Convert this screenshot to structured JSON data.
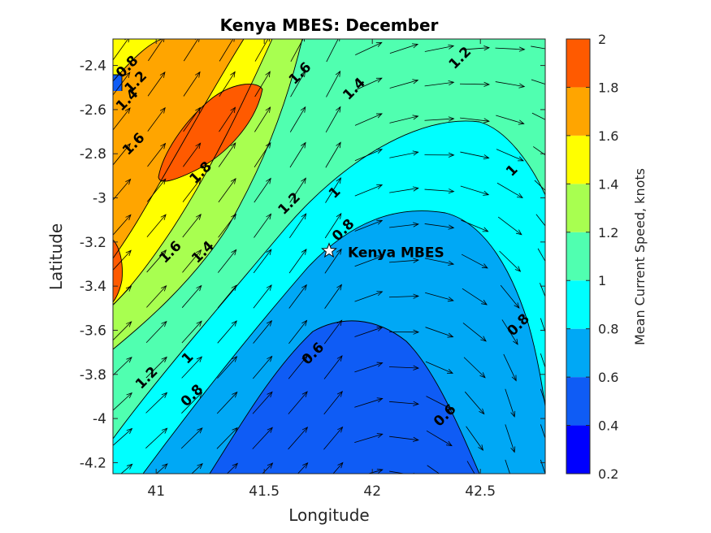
{
  "chart_data": {
    "type": "filled-contour-with-quiver",
    "title": "Kenya MBES: December",
    "xlabel": "Longitude",
    "ylabel": "Latitude",
    "xlim": [
      40.8,
      42.8
    ],
    "ylim": [
      -4.25,
      -2.28
    ],
    "xticks": [
      41,
      41.5,
      42,
      42.5
    ],
    "yticks": [
      -2.4,
      -2.6,
      -2.8,
      -3,
      -3.2,
      -3.4,
      -3.6,
      -3.8,
      -4,
      -4.2
    ],
    "colorbar": {
      "label": "Mean Current Speed, knots",
      "ticks": [
        0.2,
        0.4,
        0.6,
        0.8,
        1,
        1.2,
        1.4,
        1.6,
        1.8,
        2
      ],
      "levels": [
        {
          "from": 0.2,
          "to": 0.4,
          "color": "#0000ff"
        },
        {
          "from": 0.4,
          "to": 0.6,
          "color": "#0f5cf5"
        },
        {
          "from": 0.6,
          "to": 0.8,
          "color": "#00a8f5"
        },
        {
          "from": 0.8,
          "to": 1.0,
          "color": "#00ffff"
        },
        {
          "from": 1.0,
          "to": 1.2,
          "color": "#50ffb0"
        },
        {
          "from": 1.2,
          "to": 1.4,
          "color": "#a8ff50"
        },
        {
          "from": 1.4,
          "to": 1.6,
          "color": "#ffff00"
        },
        {
          "from": 1.6,
          "to": 1.8,
          "color": "#ffa500"
        },
        {
          "from": 1.8,
          "to": 2.0,
          "color": "#ff5a00"
        }
      ]
    },
    "contour_labels": [
      {
        "text": "0.8",
        "lon": 40.88,
        "lat": -2.42
      },
      {
        "text": "1.2",
        "lon": 40.92,
        "lat": -2.49
      },
      {
        "text": "1.4",
        "lon": 40.88,
        "lat": -2.57
      },
      {
        "text": "1.6",
        "lon": 40.91,
        "lat": -2.77
      },
      {
        "text": "1.8",
        "lon": 41.22,
        "lat": -2.9
      },
      {
        "text": "1.6",
        "lon": 41.68,
        "lat": -2.45
      },
      {
        "text": "1.4",
        "lon": 41.93,
        "lat": -2.52
      },
      {
        "text": "1.2",
        "lon": 42.42,
        "lat": -2.38
      },
      {
        "text": "1.2",
        "lon": 41.63,
        "lat": -3.04
      },
      {
        "text": "1",
        "lon": 41.84,
        "lat": -2.99
      },
      {
        "text": "1",
        "lon": 42.66,
        "lat": -2.89
      },
      {
        "text": "0.8",
        "lon": 41.88,
        "lat": -3.16
      },
      {
        "text": "1.6",
        "lon": 41.08,
        "lat": -3.26
      },
      {
        "text": "1.4",
        "lon": 41.23,
        "lat": -3.26
      },
      {
        "text": "0.8",
        "lon": 42.69,
        "lat": -3.59
      },
      {
        "text": "0.6",
        "lon": 41.74,
        "lat": -3.72
      },
      {
        "text": "1",
        "lon": 41.16,
        "lat": -3.74
      },
      {
        "text": "1.2",
        "lon": 40.97,
        "lat": -3.83
      },
      {
        "text": "0.8",
        "lon": 41.18,
        "lat": -3.91
      },
      {
        "text": "0.6",
        "lon": 42.35,
        "lat": -4.0
      }
    ],
    "site": {
      "name": "Kenya MBES",
      "lon": 41.8,
      "lat": -3.24
    }
  }
}
